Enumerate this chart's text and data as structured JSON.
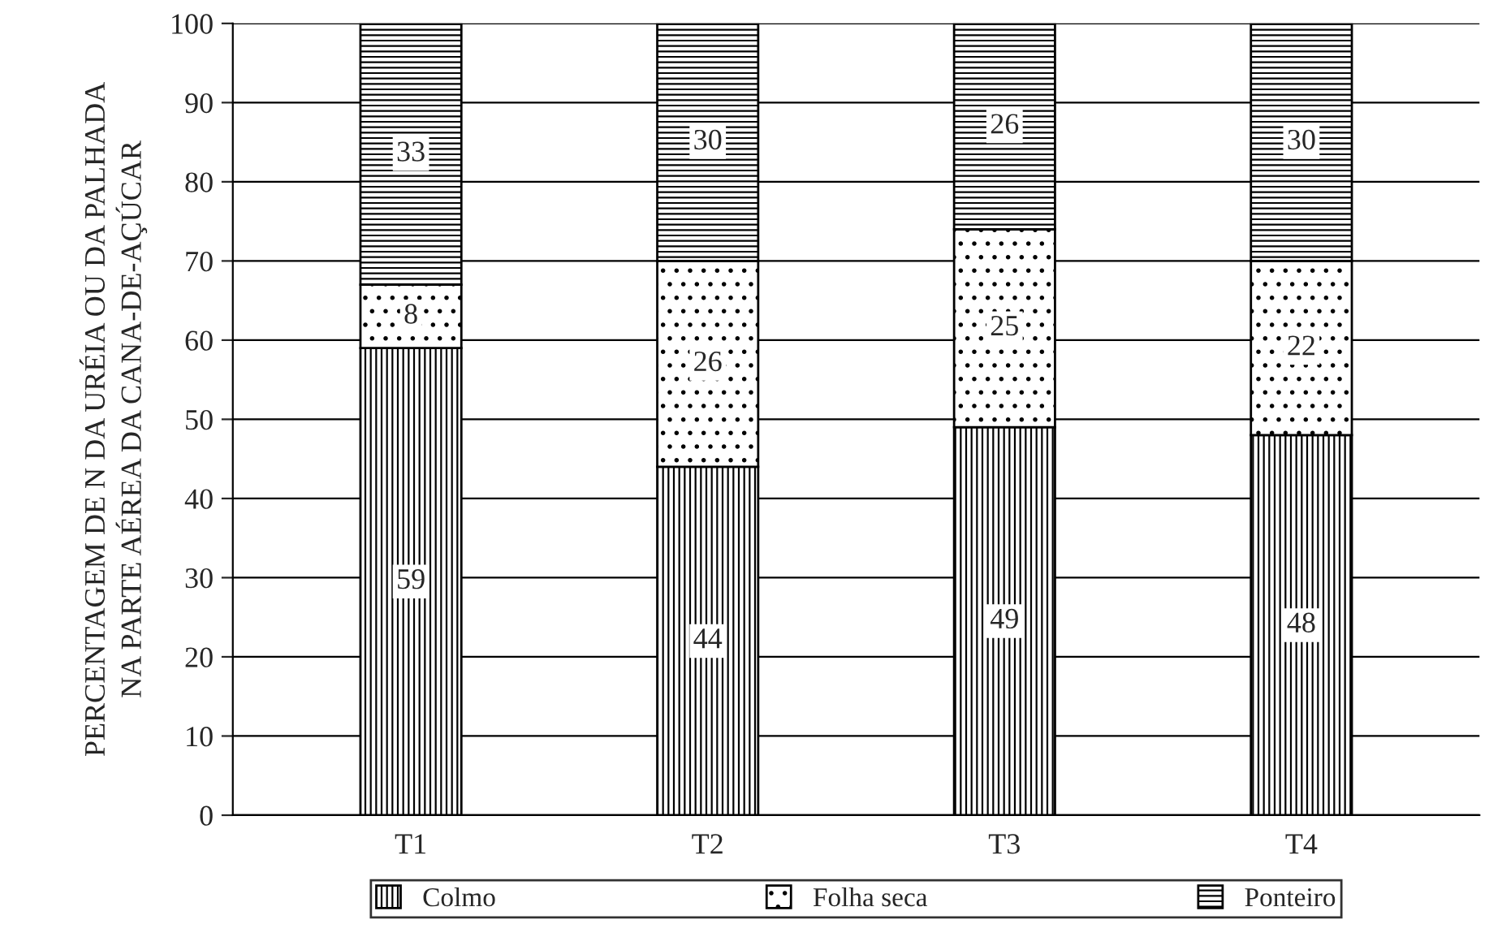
{
  "chart_data": {
    "type": "bar",
    "stacked": true,
    "ylabel": "PERCENTAGEM DE N DA URÉIA OU DA PALHADA\nNA PARTE AÉREA DA CANA-DE-AÇÚCAR",
    "categories": [
      "T1",
      "T2",
      "T3",
      "T4"
    ],
    "series": [
      {
        "name": "Colmo",
        "color": "#000000",
        "values": [
          59,
          44,
          49,
          48
        ]
      },
      {
        "name": "Folha seca",
        "color": "#000000",
        "values": [
          8,
          26,
          25,
          22
        ]
      },
      {
        "name": "Ponteiro",
        "color": "#000000",
        "values": [
          33,
          30,
          26,
          30
        ]
      }
    ],
    "ylim": [
      0,
      100
    ],
    "yticks": [
      0,
      10,
      20,
      30,
      40,
      50,
      60,
      70,
      80,
      90,
      100
    ],
    "grid": "y",
    "legend": "bottom",
    "data_labels": true
  }
}
